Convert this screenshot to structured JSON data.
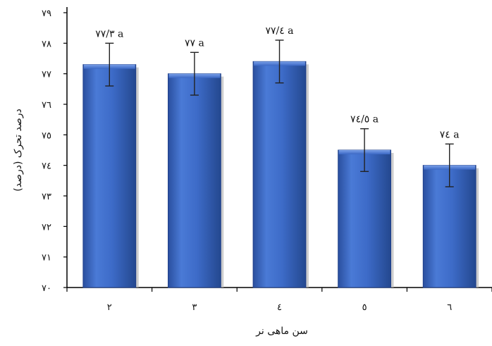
{
  "chart_data": {
    "type": "bar",
    "title": "",
    "xlabel": "سن ماهی نر",
    "ylabel": "درصد تحرک (درصد)",
    "categories": [
      "٢",
      "٣",
      "٤",
      "٥",
      "٦"
    ],
    "values": [
      77.3,
      77.0,
      77.4,
      74.5,
      74.0
    ],
    "error": [
      0.7,
      0.7,
      0.7,
      0.7,
      0.7
    ],
    "data_labels": [
      "٧٧/٣ a",
      "٧٧ a",
      "٧٧/٤ a",
      "٧٤/٥ a",
      "٧٤ a"
    ],
    "ylim": [
      70,
      79
    ],
    "yticks": [
      70,
      71,
      72,
      73,
      74,
      75,
      76,
      77,
      78,
      79
    ],
    "ytick_labels": [
      "٧٠",
      "٧١",
      "٧٢",
      "٧٣",
      "٧٤",
      "٧٥",
      "٧٦",
      "٧٧",
      "٧٨",
      "٧٩"
    ],
    "grid": false,
    "bar_color": "#3a67c4",
    "bar_edge_color": "#1f3f8a"
  }
}
